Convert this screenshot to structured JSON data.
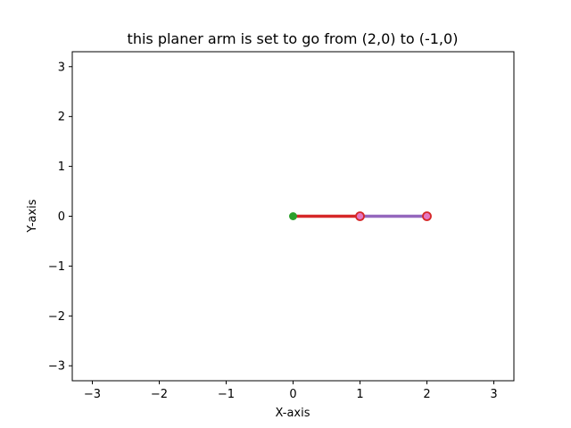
{
  "chart_data": {
    "type": "line",
    "title": "this planer arm is set to go from (2,0) to (-1,0)",
    "xlabel": "X-axis",
    "ylabel": "Y-axis",
    "xlim": [
      -3.3,
      3.3
    ],
    "ylim": [
      -3.3,
      3.3
    ],
    "xticks": [
      -3,
      -2,
      -1,
      0,
      1,
      2,
      3
    ],
    "yticks": [
      -3,
      -2,
      -1,
      0,
      1,
      2,
      3
    ],
    "xtick_labels": [
      "−3",
      "−2",
      "−1",
      "0",
      "1",
      "2",
      "3"
    ],
    "ytick_labels": [
      "−3",
      "−2",
      "−1",
      "0",
      "1",
      "2",
      "3"
    ],
    "grid": false,
    "series": [
      {
        "role": "link-1",
        "x": [
          0,
          1
        ],
        "y": [
          0,
          0
        ],
        "color": "#d62728"
      },
      {
        "role": "link-2",
        "x": [
          1,
          2
        ],
        "y": [
          0,
          0
        ],
        "color": "#9467bd"
      }
    ],
    "points": [
      {
        "role": "base-joint",
        "x": 0,
        "y": 0,
        "color": "#2ca02c"
      },
      {
        "role": "elbow-joint",
        "x": 1,
        "y": 0,
        "color": "#e377c2",
        "edge": "#d62728"
      },
      {
        "role": "end-effector",
        "x": 2,
        "y": 0,
        "color": "#e377c2",
        "edge": "#d62728"
      }
    ]
  }
}
